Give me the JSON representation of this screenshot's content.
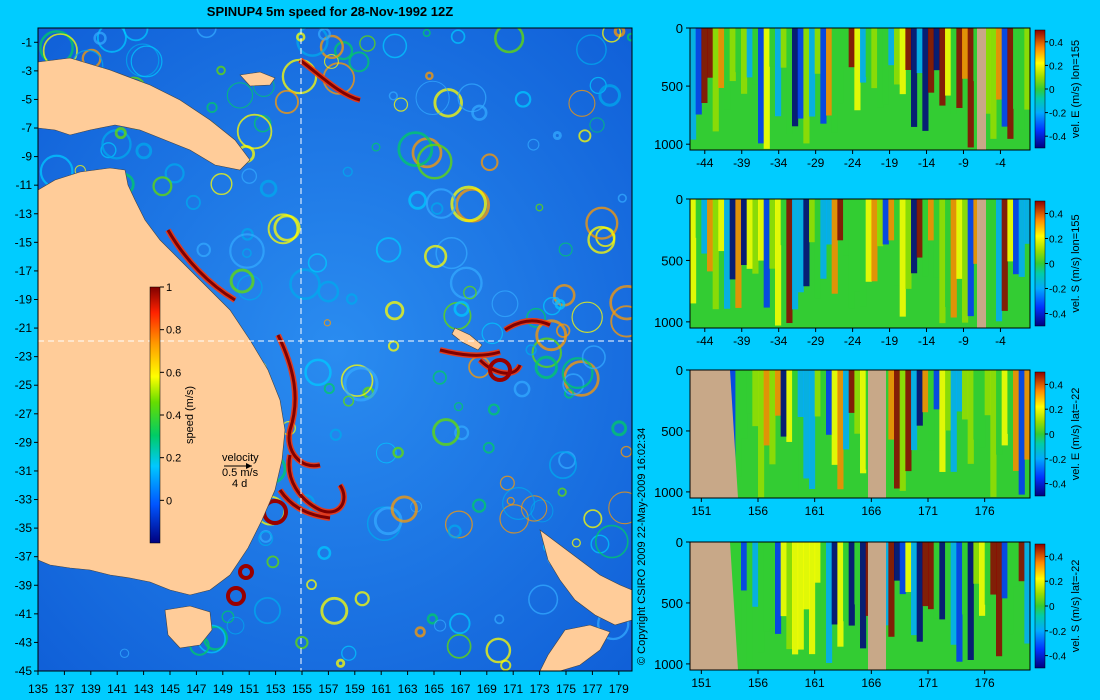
{
  "title": "SPINUP4 5m speed for 28-Nov-1992 12Z",
  "copyright": "© Copyright CSIRO 2009   22-May-2009 16:02:34",
  "colors": {
    "background": "#00ccff",
    "land": "#ffcc99",
    "section_land": "#c8a888",
    "guide_line": "#ffffff"
  },
  "map": {
    "lon_ticks": [
      "135",
      "137",
      "139",
      "141",
      "143",
      "145",
      "147",
      "149",
      "151",
      "153",
      "155",
      "157",
      "159",
      "161",
      "163",
      "165",
      "167",
      "169",
      "171",
      "173",
      "175",
      "177",
      "179"
    ],
    "lat_ticks": [
      "-1",
      "-3",
      "-5",
      "-7",
      "-9",
      "-11",
      "-13",
      "-15",
      "-17",
      "-19",
      "-21",
      "-23",
      "-25",
      "-27",
      "-29",
      "-31",
      "-33",
      "-35",
      "-37",
      "-39",
      "-41",
      "-43",
      "-45"
    ],
    "xlim": [
      135,
      180
    ],
    "ylim": [
      -45,
      0
    ],
    "guide_lon": 155,
    "guide_lat": -22,
    "colorbar": {
      "label": "speed (m/s)",
      "ticks": [
        "1",
        "0.8",
        "0.6",
        "0.4",
        "0.2",
        "0"
      ],
      "range": [
        -0.2,
        1
      ]
    },
    "velocity_legend": {
      "title": "velocity",
      "scale": "0.5 m/s",
      "duration": "4 d"
    }
  },
  "sections": [
    {
      "label": "vel. E (m/s) lon=155",
      "x_ticks": [
        "-44",
        "-39",
        "-34",
        "-29",
        "-24",
        "-19",
        "-14",
        "-9",
        "-4"
      ],
      "xlim": [
        -46,
        0
      ],
      "y_ticks": [
        "0",
        "500",
        "1000"
      ],
      "ylim": [
        0,
        1050
      ],
      "cb_ticks": [
        "0.4",
        "0.2",
        "0",
        "-0.2",
        "-0.4"
      ]
    },
    {
      "label": "vel. S (m/s) lon=155",
      "x_ticks": [
        "-44",
        "-39",
        "-34",
        "-29",
        "-24",
        "-19",
        "-14",
        "-9",
        "-4"
      ],
      "xlim": [
        -46,
        0
      ],
      "y_ticks": [
        "0",
        "500",
        "1000"
      ],
      "ylim": [
        0,
        1050
      ],
      "cb_ticks": [
        "0.4",
        "0.2",
        "0",
        "-0.2",
        "-0.4"
      ]
    },
    {
      "label": "vel. E (m/s) lat=-22",
      "x_ticks": [
        "151",
        "156",
        "161",
        "166",
        "171",
        "176"
      ],
      "xlim": [
        150,
        180
      ],
      "y_ticks": [
        "0",
        "500",
        "1000"
      ],
      "ylim": [
        0,
        1050
      ],
      "cb_ticks": [
        "0.4",
        "0.2",
        "0",
        "-0.2",
        "-0.4"
      ]
    },
    {
      "label": "vel. S (m/s) lat=-22",
      "x_ticks": [
        "151",
        "156",
        "161",
        "166",
        "171",
        "176"
      ],
      "xlim": [
        150,
        180
      ],
      "y_ticks": [
        "0",
        "500",
        "1000"
      ],
      "ylim": [
        0,
        1050
      ],
      "cb_ticks": [
        "0.4",
        "0.2",
        "0",
        "-0.2",
        "-0.4"
      ]
    }
  ]
}
